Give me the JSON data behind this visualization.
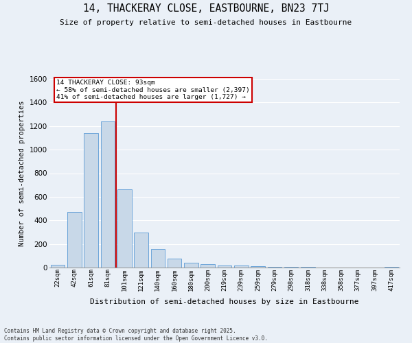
{
  "title": "14, THACKERAY CLOSE, EASTBOURNE, BN23 7TJ",
  "subtitle": "Size of property relative to semi-detached houses in Eastbourne",
  "xlabel": "Distribution of semi-detached houses by size in Eastbourne",
  "ylabel": "Number of semi-detached properties",
  "categories": [
    "22sqm",
    "42sqm",
    "61sqm",
    "81sqm",
    "101sqm",
    "121sqm",
    "140sqm",
    "160sqm",
    "180sqm",
    "200sqm",
    "219sqm",
    "239sqm",
    "259sqm",
    "279sqm",
    "298sqm",
    "318sqm",
    "338sqm",
    "358sqm",
    "377sqm",
    "397sqm",
    "417sqm"
  ],
  "values": [
    25,
    470,
    1140,
    1240,
    665,
    295,
    160,
    75,
    40,
    30,
    18,
    15,
    10,
    8,
    5,
    3,
    2,
    2,
    1,
    1,
    8
  ],
  "bar_color": "#c8d8e8",
  "bar_edge_color": "#5b9bd5",
  "red_line_index": 3,
  "annotation_line1": "14 THACKERAY CLOSE: 93sqm",
  "annotation_line2": "← 58% of semi-detached houses are smaller (2,397)",
  "annotation_line3": "41% of semi-detached houses are larger (1,727) →",
  "ylim": [
    0,
    1600
  ],
  "yticks": [
    0,
    200,
    400,
    600,
    800,
    1000,
    1200,
    1400,
    1600
  ],
  "background_color": "#eaf0f7",
  "plot_bg_color": "#eaf0f7",
  "grid_color": "#ffffff",
  "footer_line1": "Contains HM Land Registry data © Crown copyright and database right 2025.",
  "footer_line2": "Contains public sector information licensed under the Open Government Licence v3.0.",
  "red_line_color": "#cc0000",
  "annotation_box_edgecolor": "#cc0000",
  "annotation_box_facecolor": "#ffffff"
}
